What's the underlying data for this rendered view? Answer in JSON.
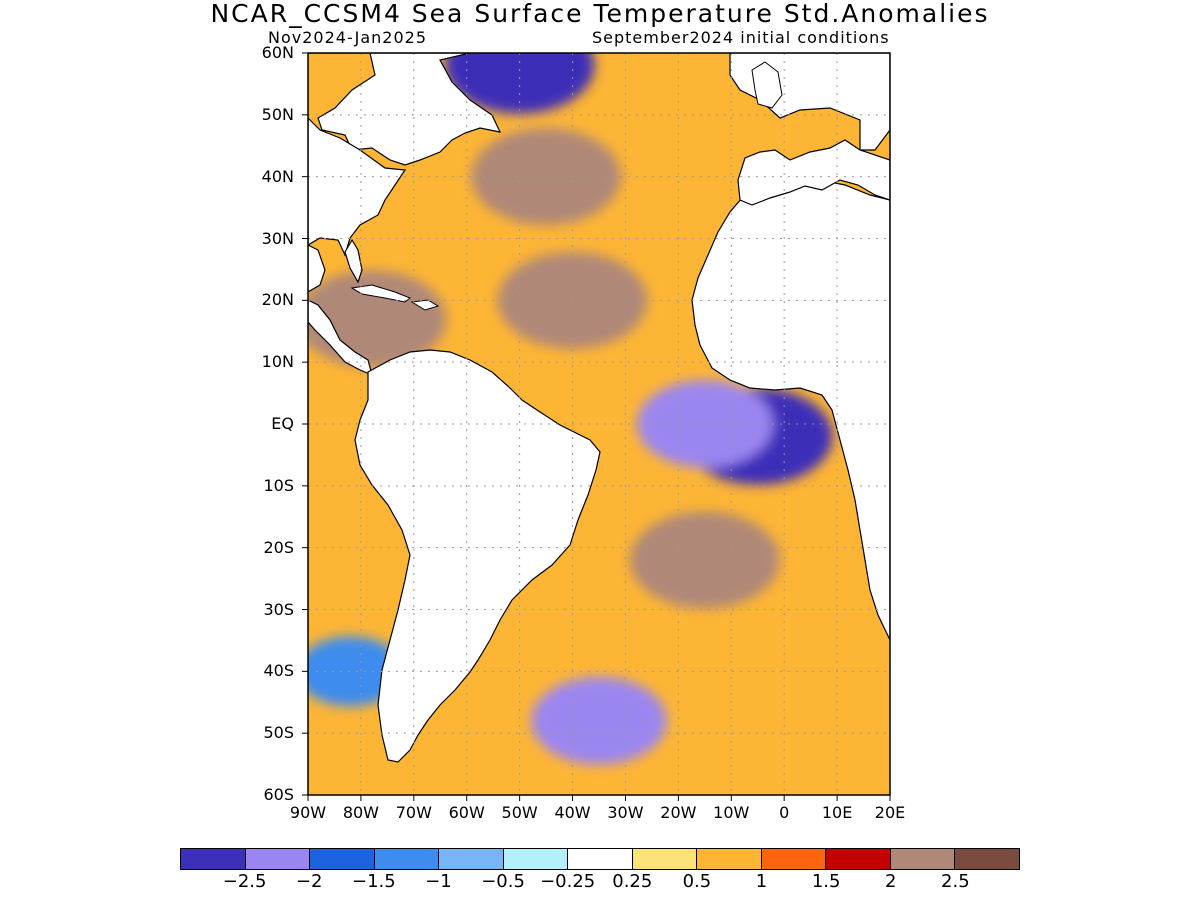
{
  "title": "NCAR_CCSM4 Sea Surface Temperature Std.Anomalies",
  "subtitle_left": "Nov2024-Jan2025",
  "subtitle_right": "September2024 initial conditions",
  "map": {
    "type": "filled-contour-map",
    "variable": "sea surface temperature standardized anomaly",
    "lat_range": [
      -60,
      60
    ],
    "lon_range": [
      -90,
      20
    ],
    "grid": true,
    "lat_labels": [
      "60N",
      "50N",
      "40N",
      "30N",
      "20N",
      "10N",
      "EQ",
      "10S",
      "20S",
      "30S",
      "40S",
      "50S",
      "60S"
    ],
    "lon_labels": [
      "90W",
      "80W",
      "70W",
      "60W",
      "50W",
      "40W",
      "30W",
      "20W",
      "10W",
      "0",
      "10E",
      "20E"
    ],
    "land_color": "#ffffff",
    "anomaly_regions": [
      {
        "name": "equatorial-east-atlantic-cold",
        "lat": -2,
        "lon": -5,
        "value": -2.5
      },
      {
        "name": "guinea-coast-cold",
        "lat": 0,
        "lon": -15,
        "value": -2
      },
      {
        "name": "north-tropical-warm",
        "lat": 20,
        "lon": -40,
        "value": 2.5
      },
      {
        "name": "caribbean-warm",
        "lat": 17,
        "lon": -78,
        "value": 2.5
      },
      {
        "name": "subtropical-north-warm",
        "lat": 40,
        "lon": -45,
        "value": 2.5
      },
      {
        "name": "south-subtropical-warm",
        "lat": -22,
        "lon": -15,
        "value": 2.5
      },
      {
        "name": "southwest-cold",
        "lat": -48,
        "lon": -35,
        "value": -2
      },
      {
        "name": "chile-coast-cold",
        "lat": -40,
        "lon": -82,
        "value": -1
      },
      {
        "name": "north-atlantic-cold",
        "lat": 58,
        "lon": -50,
        "value": -2.5
      }
    ]
  },
  "colorbar": {
    "colors": [
      "#3c2fb8",
      "#9b86f0",
      "#1f62de",
      "#3d8cee",
      "#78b4f6",
      "#b2f0fa",
      "#ffffff",
      "#fde27a",
      "#fdb535",
      "#fc6410",
      "#c40000",
      "#b08878",
      "#7a4c40"
    ],
    "labels": [
      "-2.5",
      "-2",
      "-1.5",
      "-1",
      "-0.5",
      "-0.25",
      "0.25",
      "0.5",
      "1",
      "1.5",
      "2",
      "2.5"
    ]
  }
}
